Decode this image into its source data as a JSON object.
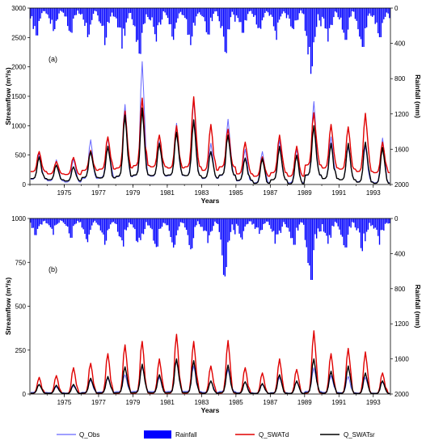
{
  "colors": {
    "rainfall": "#0000ff",
    "q_obs": "#6666ff",
    "q_swatd": "#e00000",
    "q_swatsr": "#000000"
  },
  "legend": {
    "entries": [
      {
        "key": "q_obs",
        "label": "Q_Obs",
        "kind": "line"
      },
      {
        "key": "rainfall",
        "label": "Rainfall",
        "kind": "box"
      },
      {
        "key": "q_swatd",
        "label": "Q_SWATd",
        "kind": "line"
      },
      {
        "key": "q_swatsr",
        "label": "Q_SWATsr",
        "kind": "line"
      }
    ]
  },
  "chart_data": [
    {
      "type": "line",
      "panel_label": "(a)",
      "xlabel": "Years",
      "ylabel": "Streamflow (m³/s)",
      "ylabel_right": "Rainfall (mm)",
      "xlim": [
        1973.0,
        1994.0
      ],
      "ylim": [
        0,
        3000
      ],
      "ylim_right_inverted": [
        0,
        2000
      ],
      "x_ticks": [
        1975,
        1977,
        1979,
        1981,
        1983,
        1985,
        1987,
        1989,
        1991,
        1993
      ],
      "x_tick_labels": [
        "1975",
        "1977",
        "1979",
        "1981",
        "1983",
        "1985",
        "1987",
        "1989",
        "1991",
        "1993"
      ],
      "y_ticks": [
        0,
        500,
        1000,
        1500,
        2000,
        2500,
        3000
      ],
      "y_tick_labels": [
        "0",
        "500",
        "1000",
        "1500",
        "2000",
        "2500",
        "3000"
      ],
      "y_right_ticks": [
        0,
        400,
        800,
        1200,
        1600,
        2000
      ],
      "y_right_tick_labels": [
        "0",
        "400",
        "800",
        "1200",
        "1600",
        "2000"
      ],
      "annual_peaks": {
        "years": [
          1973,
          1974,
          1975,
          1976,
          1977,
          1978,
          1979,
          1980,
          1981,
          1982,
          1983,
          1984,
          1985,
          1986,
          1987,
          1988,
          1989,
          1990,
          1991,
          1992,
          1993
        ],
        "q_obs": [
          530,
          420,
          440,
          760,
          800,
          1360,
          2090,
          730,
          1040,
          1460,
          700,
          1110,
          600,
          560,
          750,
          600,
          1410,
          810,
          640,
          660,
          790
        ],
        "q_swatd": [
          560,
          390,
          460,
          580,
          810,
          1250,
          1470,
          840,
          1000,
          1490,
          1020,
          940,
          720,
          470,
          840,
          650,
          1220,
          1020,
          980,
          1210,
          720
        ],
        "q_swatsr": [
          470,
          330,
          300,
          560,
          650,
          1180,
          1300,
          700,
          890,
          1100,
          560,
          840,
          450,
          440,
          650,
          500,
          1000,
          700,
          700,
          720,
          630
        ]
      },
      "annual_troughs": {
        "q_obs": [
          90,
          60,
          40,
          100,
          120,
          130,
          150,
          140,
          150,
          150,
          100,
          150,
          60,
          30,
          80,
          30,
          150,
          100,
          80,
          50,
          30
        ],
        "q_swatd": [
          220,
          180,
          170,
          240,
          260,
          280,
          320,
          300,
          280,
          300,
          240,
          300,
          180,
          140,
          200,
          140,
          330,
          280,
          260,
          220,
          200
        ],
        "q_swatsr": [
          100,
          80,
          60,
          120,
          110,
          140,
          160,
          150,
          160,
          150,
          110,
          160,
          70,
          20,
          80,
          10,
          160,
          100,
          80,
          40,
          20
        ]
      },
      "rainfall_monthly_max_mm": [
        310,
        260,
        280,
        330,
        420,
        460,
        520,
        380,
        360,
        420,
        300,
        510,
        280,
        260,
        360,
        300,
        660,
        380,
        360,
        440,
        330
      ]
    },
    {
      "type": "line",
      "panel_label": "(b)",
      "xlabel": "Years",
      "ylabel": "Streamflow (m³/s)",
      "ylabel_right": "Rainfall (mm)",
      "xlim": [
        1973.0,
        1994.0
      ],
      "ylim": [
        0,
        1000
      ],
      "ylim_right_inverted": [
        0,
        2000
      ],
      "x_ticks": [
        1975,
        1977,
        1979,
        1981,
        1983,
        1985,
        1987,
        1989,
        1991,
        1993
      ],
      "x_tick_labels": [
        "1975",
        "1977",
        "1979",
        "1981",
        "1983",
        "1985",
        "1987",
        "1989",
        "1991",
        "1993"
      ],
      "y_ticks": [
        0,
        250,
        500,
        750,
        1000
      ],
      "y_tick_labels": [
        "0",
        "250",
        "500",
        "750",
        "1000"
      ],
      "y_right_ticks": [
        0,
        400,
        800,
        1200,
        1600,
        2000
      ],
      "y_right_tick_labels": [
        "0",
        "400",
        "800",
        "1200",
        "1600",
        "2000"
      ],
      "annual_peaks": {
        "years": [
          1973,
          1974,
          1975,
          1976,
          1977,
          1978,
          1979,
          1980,
          1981,
          1982,
          1983,
          1984,
          1985,
          1986,
          1987,
          1988,
          1989,
          1990,
          1991,
          1992,
          1993
        ],
        "q_obs": [
          55,
          40,
          45,
          80,
          90,
          110,
          160,
          95,
          190,
          160,
          75,
          140,
          70,
          55,
          95,
          70,
          150,
          105,
          100,
          95,
          70
        ],
        "q_swatd": [
          95,
          105,
          150,
          175,
          230,
          280,
          300,
          200,
          340,
          300,
          160,
          305,
          150,
          120,
          200,
          140,
          360,
          230,
          260,
          240,
          120
        ],
        "q_swatsr": [
          55,
          50,
          55,
          90,
          100,
          155,
          170,
          110,
          200,
          190,
          75,
          165,
          70,
          60,
          110,
          75,
          200,
          130,
          160,
          120,
          75
        ]
      },
      "annual_troughs": {
        "q_obs": [
          10,
          8,
          6,
          10,
          12,
          14,
          15,
          14,
          15,
          15,
          10,
          15,
          8,
          5,
          8,
          5,
          15,
          10,
          8,
          6,
          5
        ],
        "q_swatd": [
          3,
          3,
          2,
          3,
          4,
          4,
          5,
          4,
          5,
          5,
          3,
          5,
          3,
          2,
          3,
          2,
          5,
          3,
          3,
          2,
          2
        ],
        "q_swatsr": [
          5,
          4,
          3,
          6,
          6,
          7,
          8,
          7,
          8,
          8,
          5,
          8,
          4,
          3,
          5,
          3,
          8,
          5,
          4,
          3,
          3
        ]
      },
      "rainfall_monthly_max_mm": [
        220,
        180,
        220,
        270,
        300,
        320,
        380,
        320,
        300,
        340,
        280,
        660,
        240,
        220,
        330,
        300,
        700,
        330,
        330,
        380,
        300
      ]
    }
  ]
}
